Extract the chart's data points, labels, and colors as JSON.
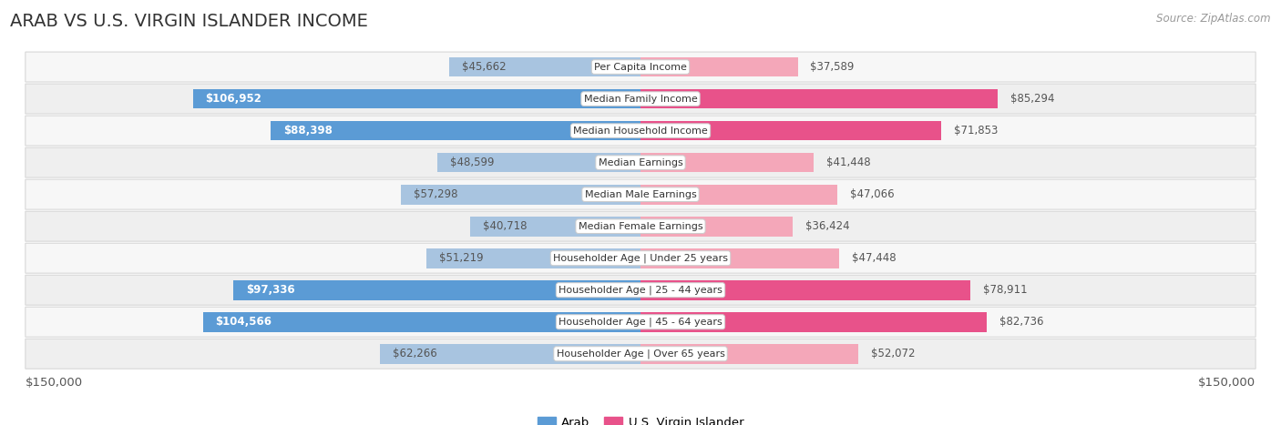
{
  "title": "ARAB VS U.S. VIRGIN ISLANDER INCOME",
  "source": "Source: ZipAtlas.com",
  "categories": [
    "Per Capita Income",
    "Median Family Income",
    "Median Household Income",
    "Median Earnings",
    "Median Male Earnings",
    "Median Female Earnings",
    "Householder Age | Under 25 years",
    "Householder Age | 25 - 44 years",
    "Householder Age | 45 - 64 years",
    "Householder Age | Over 65 years"
  ],
  "arab_values": [
    45662,
    106952,
    88398,
    48599,
    57298,
    40718,
    51219,
    97336,
    104566,
    62266
  ],
  "usvi_values": [
    37589,
    85294,
    71853,
    41448,
    47066,
    36424,
    47448,
    78911,
    82736,
    52072
  ],
  "arab_labels": [
    "$45,662",
    "$106,952",
    "$88,398",
    "$48,599",
    "$57,298",
    "$40,718",
    "$51,219",
    "$97,336",
    "$104,566",
    "$62,266"
  ],
  "usvi_labels": [
    "$37,589",
    "$85,294",
    "$71,853",
    "$41,448",
    "$47,066",
    "$36,424",
    "$47,448",
    "$78,911",
    "$82,736",
    "$52,072"
  ],
  "arab_color_light": "#a8c4e0",
  "arab_color_dark": "#5b9bd5",
  "usvi_color_light": "#f4a7b9",
  "usvi_color_dark": "#e8528a",
  "max_value": 150000,
  "xlabel_left": "$150,000",
  "xlabel_right": "$150,000",
  "legend_arab": "Arab",
  "legend_usvi": "U.S. Virgin Islander",
  "bar_height": 0.62,
  "row_bg_even": "#f7f7f7",
  "row_bg_odd": "#efefef",
  "arab_dark_rows": [
    1,
    2,
    7,
    8
  ],
  "usvi_dark_rows": [
    1,
    2,
    7,
    8
  ],
  "arab_inside_label_rows": [
    1,
    2,
    7,
    8
  ],
  "label_color_inside": "#ffffff",
  "label_color_outside": "#555555",
  "label_fontsize": 8.5,
  "cat_fontsize": 8.0,
  "title_fontsize": 14,
  "source_fontsize": 8.5,
  "legend_fontsize": 9.5
}
